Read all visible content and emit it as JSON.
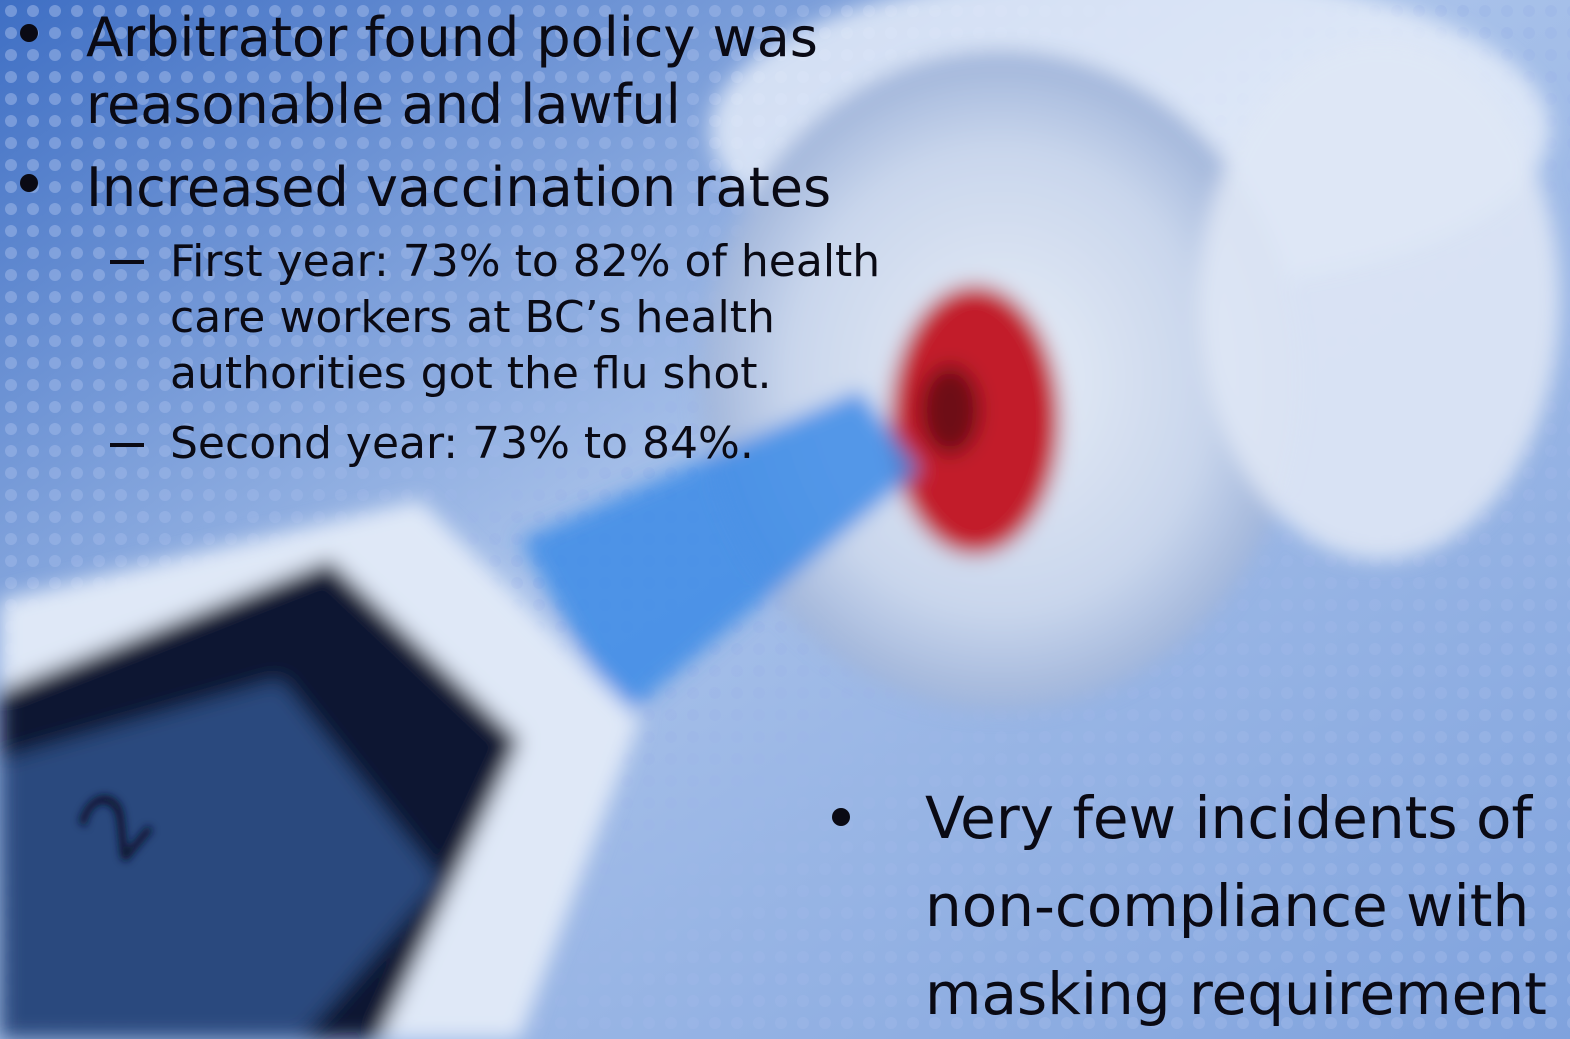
{
  "bullets": [
    {
      "text": "Arbitrator found policy was reasonable and lawful"
    },
    {
      "text": "Increased vaccination rates",
      "sub": [
        "First year: 73% to 82% of health care workers at BC’s health authorities got the flu shot.",
        "Second year: 73% to 84%."
      ]
    },
    {
      "text": "Very few incidents of non-compliance with masking requirement"
    }
  ]
}
